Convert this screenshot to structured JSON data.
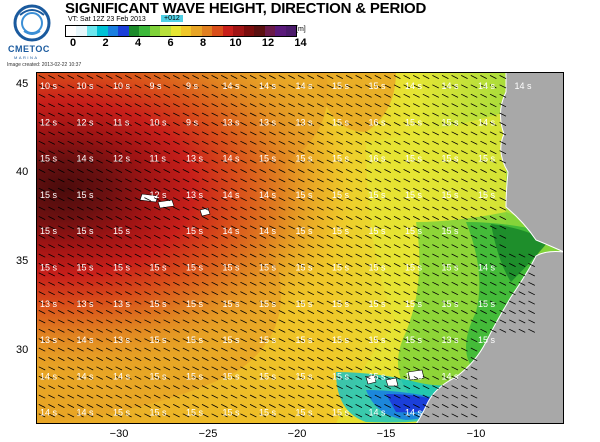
{
  "header": {
    "title": "SIGNIFICANT WAVE HEIGHT, DIRECTION & PERIOD",
    "valid_time": "VT: Sat 12Z 23 Feb 2013",
    "forecast_badge": "+012",
    "image_date": "Image created: 2013-02-22 10:37"
  },
  "logo": {
    "name": "CMETOC",
    "sub": "MARINA",
    "colors": {
      "ring": "#1a5a9e",
      "accent": "#3b8fd6"
    }
  },
  "colorscale": {
    "unit": "[m]",
    "labels": [
      "0",
      "2",
      "4",
      "6",
      "8",
      "10",
      "12",
      "14"
    ],
    "colors": [
      "#ffffff",
      "#e8f7fb",
      "#6ce6ee",
      "#00c2d6",
      "#1a7fe0",
      "#1b3fd9",
      "#1b8a2a",
      "#3cb83a",
      "#7fd23a",
      "#b8e03a",
      "#e6e633",
      "#f0c728",
      "#e8a526",
      "#e07f20",
      "#d94e1a",
      "#c81f1a",
      "#a01414",
      "#7a0d0d",
      "#5a1010",
      "#6a1a4a",
      "#5a1a7a",
      "#4a1a6a"
    ]
  },
  "map": {
    "lon_ticks": [
      "−30",
      "−25",
      "−20",
      "−15",
      "−10"
    ],
    "lat_ticks": [
      "45",
      "40",
      "35",
      "30"
    ],
    "land_color": "#a8a8a8",
    "period_rows": [
      [
        "10 s",
        "10 s",
        "10 s",
        "9 s",
        "9 s",
        "14 s",
        "14 s",
        "14 s",
        "15 s",
        "15 s",
        "14 s",
        "14 s",
        "14 s",
        "14 s"
      ],
      [
        "12 s",
        "12 s",
        "11 s",
        "10 s",
        "9 s",
        "13 s",
        "13 s",
        "13 s",
        "15 s",
        "16 s",
        "15 s",
        "15 s",
        "14 s",
        "",
        ""
      ],
      [
        "15 s",
        "14 s",
        "12 s",
        "11 s",
        "13 s",
        "14 s",
        "15 s",
        "15 s",
        "15 s",
        "16 s",
        "15 s",
        "15 s",
        "15 s",
        ""
      ],
      [
        "15 s",
        "15 s",
        "",
        "12 s",
        "13 s",
        "14 s",
        "14 s",
        "15 s",
        "15 s",
        "15 s",
        "15 s",
        "15 s",
        "15 s",
        ""
      ],
      [
        "15 s",
        "15 s",
        "15 s",
        "",
        "15 s",
        "14 s",
        "14 s",
        "15 s",
        "15 s",
        "15 s",
        "15 s",
        "15 s",
        "",
        ""
      ],
      [
        "15 s",
        "15 s",
        "15 s",
        "15 s",
        "15 s",
        "15 s",
        "15 s",
        "15 s",
        "15 s",
        "15 s",
        "15 s",
        "15 s",
        "14 s",
        ""
      ],
      [
        "13 s",
        "13 s",
        "13 s",
        "15 s",
        "15 s",
        "15 s",
        "15 s",
        "15 s",
        "15 s",
        "15 s",
        "15 s",
        "15 s",
        "15 s",
        ""
      ],
      [
        "13 s",
        "14 s",
        "13 s",
        "15 s",
        "15 s",
        "15 s",
        "15 s",
        "15 s",
        "15 s",
        "15 s",
        "15 s",
        "13 s",
        "15 s",
        ""
      ],
      [
        "14 s",
        "14 s",
        "14 s",
        "15 s",
        "15 s",
        "15 s",
        "15 s",
        "15 s",
        "15 s",
        "15 s",
        "14 s",
        "14 s",
        "",
        ""
      ],
      [
        "14 s",
        "14 s",
        "15 s",
        "15 s",
        "15 s",
        "15 s",
        "15 s",
        "15 s",
        "15 s",
        "14 s",
        "14 s",
        "",
        "",
        ""
      ]
    ]
  }
}
